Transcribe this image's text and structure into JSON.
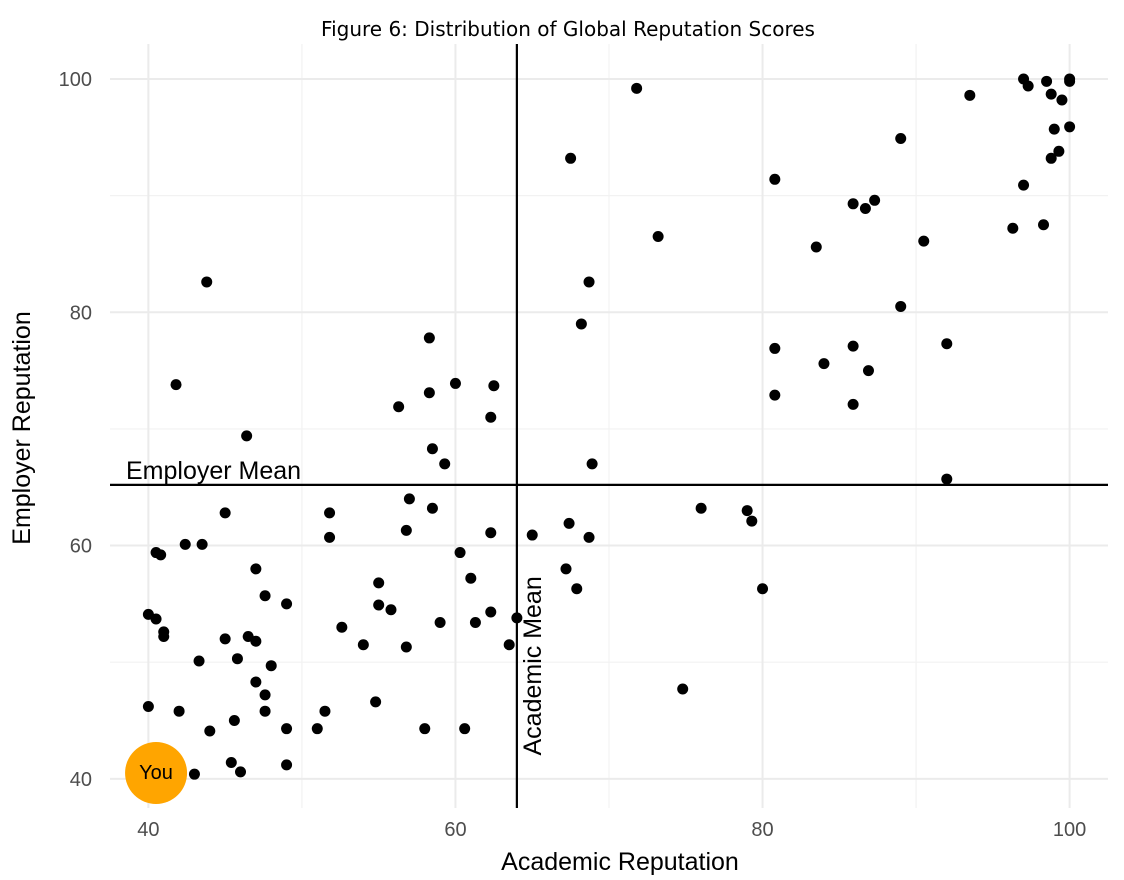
{
  "chart_data": {
    "type": "scatter",
    "title": "Figure 6: Distribution of Global Reputation Scores",
    "xlabel": "Academic Reputation",
    "ylabel": "Employer Reputation",
    "xlim": [
      37.5,
      102.5
    ],
    "ylim": [
      37.5,
      103
    ],
    "x_ticks": [
      40,
      60,
      80,
      100
    ],
    "y_ticks": [
      40,
      60,
      80,
      100
    ],
    "grid": true,
    "reference_lines": {
      "vertical": {
        "x": 64,
        "label": "Academic Mean"
      },
      "horizontal": {
        "y": 65.2,
        "label": "Employer Mean"
      }
    },
    "highlight": {
      "x": 40.5,
      "y": 40.5,
      "label": "You",
      "color": "#FFA500"
    },
    "point_color": "#000000",
    "points": [
      [
        40.0,
        54.1
      ],
      [
        40.0,
        46.2
      ],
      [
        40.5,
        59.4
      ],
      [
        40.5,
        53.7
      ],
      [
        40.8,
        59.2
      ],
      [
        41.0,
        52.6
      ],
      [
        41.0,
        52.2
      ],
      [
        42.0,
        45.8
      ],
      [
        42.4,
        60.1
      ],
      [
        43.0,
        40.4
      ],
      [
        43.3,
        50.1
      ],
      [
        43.5,
        60.1
      ],
      [
        44.0,
        44.1
      ],
      [
        45.0,
        62.8
      ],
      [
        45.0,
        52.0
      ],
      [
        45.4,
        41.4
      ],
      [
        45.6,
        45.0
      ],
      [
        45.8,
        50.3
      ],
      [
        46.0,
        40.6
      ],
      [
        46.5,
        52.2
      ],
      [
        47.0,
        58.0
      ],
      [
        47.0,
        51.8
      ],
      [
        47.0,
        48.3
      ],
      [
        47.6,
        55.7
      ],
      [
        47.6,
        47.2
      ],
      [
        47.6,
        45.8
      ],
      [
        48.0,
        49.7
      ],
      [
        49.0,
        55.0
      ],
      [
        49.0,
        44.3
      ],
      [
        49.0,
        41.2
      ],
      [
        41.8,
        73.8
      ],
      [
        43.8,
        82.6
      ],
      [
        46.4,
        69.4
      ],
      [
        51.0,
        44.3
      ],
      [
        51.5,
        45.8
      ],
      [
        51.8,
        62.8
      ],
      [
        51.8,
        60.7
      ],
      [
        52.6,
        53.0
      ],
      [
        54.0,
        51.5
      ],
      [
        54.8,
        46.6
      ],
      [
        55.0,
        56.8
      ],
      [
        55.0,
        54.9
      ],
      [
        55.8,
        54.5
      ],
      [
        56.3,
        71.9
      ],
      [
        56.8,
        61.3
      ],
      [
        56.8,
        51.3
      ],
      [
        57.0,
        64.0
      ],
      [
        58.0,
        44.3
      ],
      [
        58.3,
        77.8
      ],
      [
        58.3,
        73.1
      ],
      [
        58.5,
        68.3
      ],
      [
        58.5,
        63.2
      ],
      [
        59.0,
        53.4
      ],
      [
        59.3,
        67.0
      ],
      [
        60.0,
        73.9
      ],
      [
        60.3,
        59.4
      ],
      [
        60.6,
        44.3
      ],
      [
        61.0,
        57.2
      ],
      [
        61.3,
        53.4
      ],
      [
        62.3,
        71.0
      ],
      [
        62.3,
        61.1
      ],
      [
        62.3,
        54.3
      ],
      [
        62.5,
        73.7
      ],
      [
        63.5,
        51.5
      ],
      [
        64.0,
        53.8
      ],
      [
        65.0,
        60.9
      ],
      [
        67.2,
        58.0
      ],
      [
        67.4,
        61.9
      ],
      [
        67.5,
        93.2
      ],
      [
        67.9,
        56.3
      ],
      [
        68.2,
        79.0
      ],
      [
        68.7,
        82.6
      ],
      [
        68.7,
        60.7
      ],
      [
        68.9,
        67.0
      ],
      [
        71.8,
        99.2
      ],
      [
        73.2,
        86.5
      ],
      [
        74.8,
        47.7
      ],
      [
        76.0,
        63.2
      ],
      [
        79.0,
        63.0
      ],
      [
        79.3,
        62.1
      ],
      [
        80.0,
        56.3
      ],
      [
        80.8,
        91.4
      ],
      [
        80.8,
        76.9
      ],
      [
        80.8,
        72.9
      ],
      [
        83.5,
        85.6
      ],
      [
        84.0,
        75.6
      ],
      [
        85.9,
        89.3
      ],
      [
        85.9,
        77.1
      ],
      [
        85.9,
        72.1
      ],
      [
        86.7,
        88.9
      ],
      [
        86.9,
        75.0
      ],
      [
        87.3,
        89.6
      ],
      [
        89.0,
        94.9
      ],
      [
        89.0,
        80.5
      ],
      [
        90.5,
        86.1
      ],
      [
        92.0,
        77.3
      ],
      [
        92.0,
        65.7
      ],
      [
        93.5,
        98.6
      ],
      [
        96.3,
        87.2
      ],
      [
        97.0,
        100.0
      ],
      [
        97.0,
        90.9
      ],
      [
        97.3,
        99.4
      ],
      [
        98.3,
        87.5
      ],
      [
        98.5,
        99.8
      ],
      [
        98.8,
        98.7
      ],
      [
        98.8,
        93.2
      ],
      [
        99.0,
        95.7
      ],
      [
        99.3,
        93.8
      ],
      [
        99.5,
        98.2
      ],
      [
        100.0,
        100.0
      ],
      [
        100.0,
        99.8
      ],
      [
        100.0,
        95.9
      ]
    ]
  }
}
